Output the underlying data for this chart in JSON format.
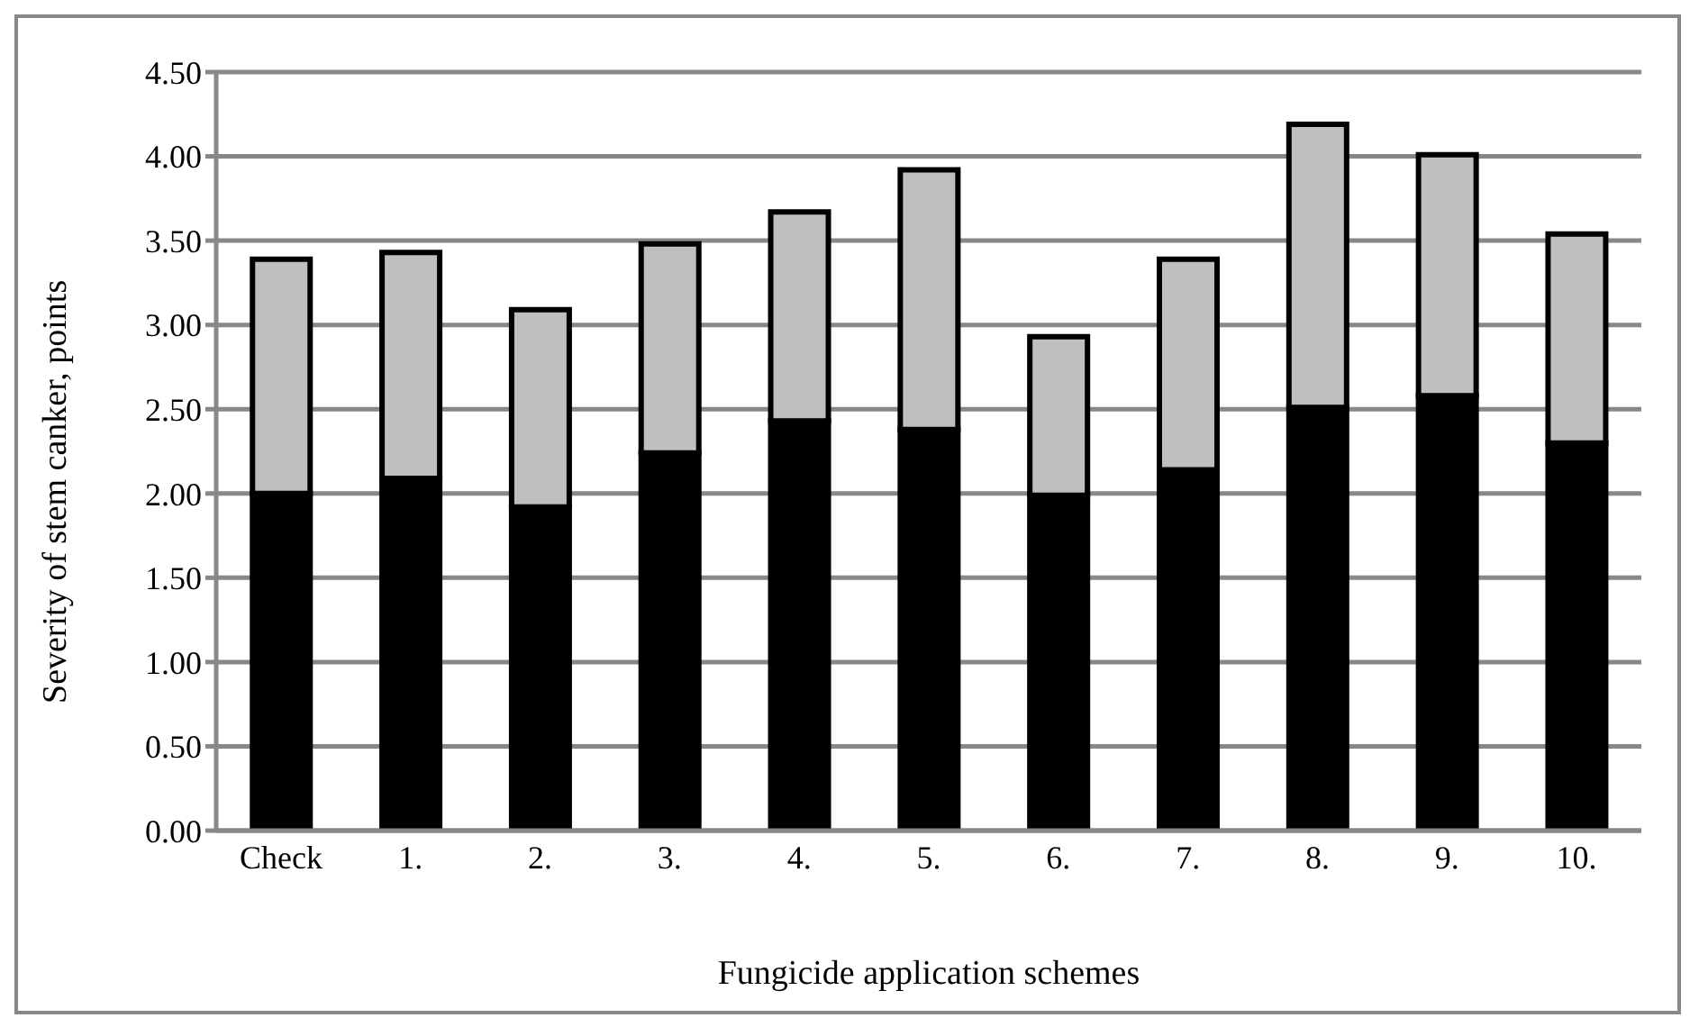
{
  "chart_data": {
    "type": "bar",
    "stacked": true,
    "xlabel": "Fungicide application schemes",
    "ylabel": "Severity of stem canker, points",
    "categories": [
      "Check",
      "1.",
      "2.",
      "3.",
      "4.",
      "5.",
      "6.",
      "7.",
      "8.",
      "9.",
      "10."
    ],
    "series": [
      {
        "color": "#000000",
        "values": [
          2.0,
          2.09,
          1.92,
          2.24,
          2.43,
          2.38,
          1.99,
          2.14,
          2.51,
          2.58,
          2.3
        ]
      },
      {
        "color": "#bfbfbf",
        "values": [
          1.39,
          1.34,
          1.17,
          1.24,
          1.24,
          1.54,
          0.94,
          1.25,
          1.68,
          1.43,
          1.24
        ]
      }
    ],
    "ylim": [
      0,
      4.5
    ],
    "yticks": [
      {
        "value": 0,
        "label": "0.00"
      },
      {
        "value": 0.5,
        "label": "0.50"
      },
      {
        "value": 1,
        "label": "1.00"
      },
      {
        "value": 1.5,
        "label": "1.50"
      },
      {
        "value": 2,
        "label": "2.00"
      },
      {
        "value": 2.5,
        "label": "2.50"
      },
      {
        "value": 3,
        "label": "3.00"
      },
      {
        "value": 3.5,
        "label": "3.50"
      },
      {
        "value": 4,
        "label": "4.00"
      },
      {
        "value": 4.5,
        "label": "4.50"
      }
    ],
    "grid": "y",
    "legend": false
  }
}
